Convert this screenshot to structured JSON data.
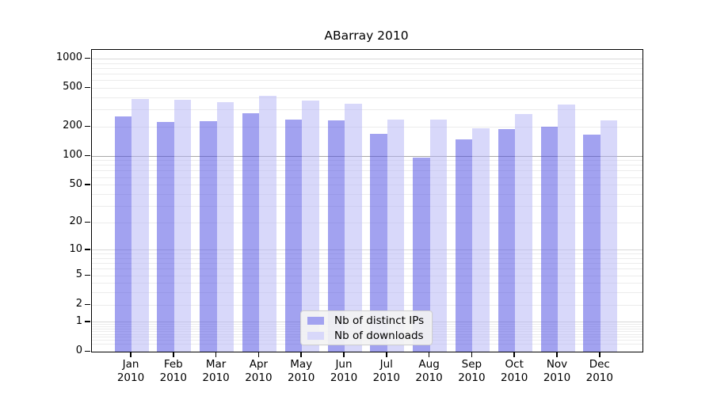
{
  "chart_data": {
    "type": "bar",
    "title": "ABarray 2010",
    "yscale": "log1p",
    "categories": [
      "Jan",
      "Feb",
      "Mar",
      "Apr",
      "May",
      "Jun",
      "Jul",
      "Aug",
      "Sep",
      "Oct",
      "Nov",
      "Dec"
    ],
    "year_label": "2010",
    "series": [
      {
        "name": "Nb of distinct IPs",
        "color": "#a2a2f0",
        "fill": "rgba(70,70,226,0.5)",
        "values": [
          258,
          225,
          228,
          275,
          240,
          232,
          170,
          96,
          150,
          190,
          200,
          166
        ]
      },
      {
        "name": "Nb of downloads",
        "color": "#d8d8fa",
        "fill": "rgba(177,177,245,0.5)",
        "values": [
          385,
          378,
          357,
          415,
          370,
          345,
          237,
          240,
          193,
          270,
          338,
          232
        ]
      }
    ],
    "yticks": [
      0,
      1,
      2,
      5,
      10,
      20,
      50,
      100,
      200,
      500,
      1000
    ],
    "ylim": [
      0,
      1200
    ],
    "grid": true,
    "grid_emphasis_value": 100,
    "legend_position": "bottom-center",
    "axis_color": "#000000",
    "background_color": "#ffffff"
  }
}
